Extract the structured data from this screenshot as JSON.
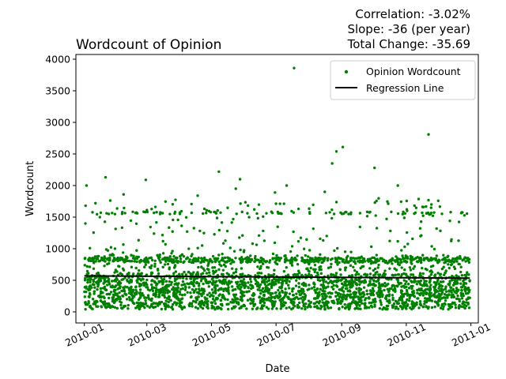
{
  "chart_data": {
    "type": "scatter",
    "title": "Wordcount of Opinion",
    "stats": {
      "correlation": "Correlation: -3.02%",
      "slope": "Slope: -36 (per year)",
      "total_change": "Total Change: -35.69"
    },
    "xlabel": "Date",
    "ylabel": "Wordcount",
    "x_range": [
      "2009-12-24",
      "2011-01-08"
    ],
    "ylim": [
      -175,
      4075
    ],
    "x_ticks": [
      "2010-01",
      "2010-03",
      "2010-05",
      "2010-07",
      "2010-09",
      "2010-11",
      "2011-01"
    ],
    "y_ticks": [
      0,
      500,
      1000,
      1500,
      2000,
      2500,
      3000,
      3500,
      4000
    ],
    "legend": {
      "position": "top-right",
      "scatter_label": "Opinion Wordcount",
      "line_label": "Regression Line"
    },
    "grid": false,
    "colors": {
      "points": "#008000",
      "regression": "#000000"
    },
    "series": [
      {
        "name": "Opinion Wordcount",
        "kind": "scatter",
        "n_points_approx": 2600,
        "distribution_note": "dense band 50-900 words across all of 2010; scattered points 1000-1800",
        "outliers": [
          {
            "date": "2010-07-18",
            "y": 3860
          },
          {
            "date": "2010-11-22",
            "y": 2810
          },
          {
            "date": "2010-09-02",
            "y": 2610
          },
          {
            "date": "2010-08-27",
            "y": 2540
          },
          {
            "date": "2010-08-23",
            "y": 2350
          },
          {
            "date": "2010-10-02",
            "y": 2280
          },
          {
            "date": "2010-05-08",
            "y": 2220
          },
          {
            "date": "2010-01-21",
            "y": 2130
          },
          {
            "date": "2010-05-28",
            "y": 2100
          },
          {
            "date": "2010-02-28",
            "y": 2090
          },
          {
            "date": "2010-10-24",
            "y": 2000
          },
          {
            "date": "2010-07-11",
            "y": 2000
          },
          {
            "date": "2010-01-03",
            "y": 2000
          },
          {
            "date": "2010-05-24",
            "y": 1950
          },
          {
            "date": "2010-08-16",
            "y": 1900
          },
          {
            "date": "2010-06-30",
            "y": 1890
          },
          {
            "date": "2010-02-07",
            "y": 1860
          },
          {
            "date": "2010-04-18",
            "y": 1840
          }
        ]
      },
      {
        "name": "Regression Line",
        "kind": "line",
        "x": [
          "2010-01-01",
          "2010-12-31"
        ],
        "y": [
          570,
          534
        ]
      }
    ]
  }
}
